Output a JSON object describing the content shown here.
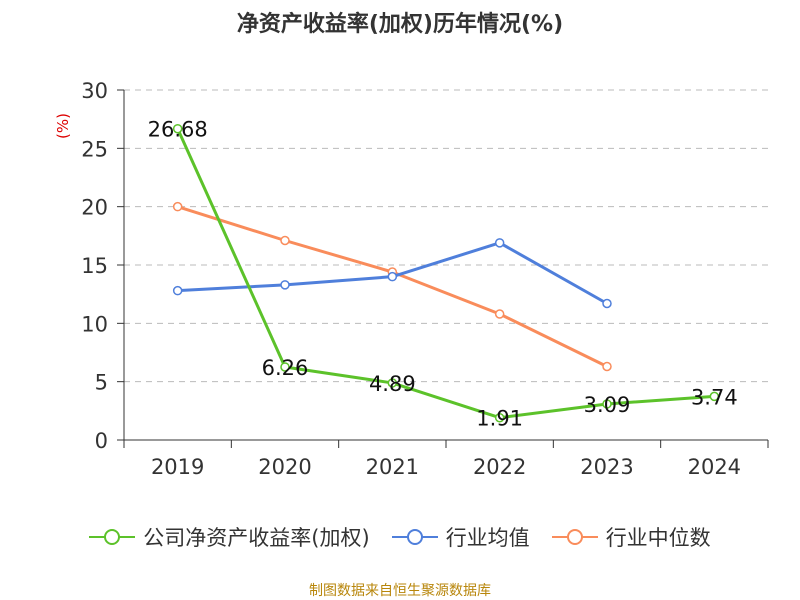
{
  "title": "净资产收益率(加权)历年情况(%)",
  "source": "制图数据来自恒生聚源数据库",
  "colors": {
    "roe": "#5cc22a",
    "industry_avg": "#4f7fdb",
    "industry_median": "#f98c5b",
    "axis": "#333333",
    "grid": "#bbbbbb",
    "ylabel": "#dd0000"
  },
  "chart_data": {
    "type": "line",
    "title": "净资产收益率(加权)历年情况(%)",
    "xlabel": "",
    "ylabel": "(%)",
    "categories": [
      "2019",
      "2020",
      "2021",
      "2022",
      "2023",
      "2024"
    ],
    "ylim": [
      0,
      30
    ],
    "yticks": [
      0,
      5,
      10,
      15,
      20,
      25,
      30
    ],
    "grid": true,
    "legend_position": "bottom",
    "series": [
      {
        "key": "roe",
        "name": "公司净资产收益率(加权)",
        "values": [
          26.68,
          6.26,
          4.89,
          1.91,
          3.09,
          3.74
        ],
        "labels": [
          "26.68",
          "6.26",
          "4.89",
          "1.91",
          "3.09",
          "3.74"
        ]
      },
      {
        "key": "industry_avg",
        "name": "行业均值",
        "values": [
          12.8,
          13.3,
          14.0,
          16.9,
          11.7,
          null
        ]
      },
      {
        "key": "industry_median",
        "name": "行业中位数",
        "values": [
          20.0,
          17.1,
          14.4,
          10.8,
          6.3,
          null
        ]
      }
    ]
  }
}
